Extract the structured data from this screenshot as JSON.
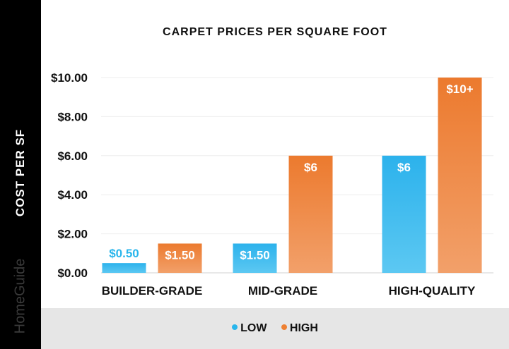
{
  "brand": "HomeGuide",
  "chart_data": {
    "type": "bar",
    "title": "CARPET PRICES PER SQUARE FOOT",
    "xlabel": "",
    "ylabel": "COST PER SF",
    "categories": [
      "BUILDER-GRADE",
      "MID-GRADE",
      "HIGH-QUALITY"
    ],
    "series": [
      {
        "name": "LOW",
        "color": "#29b6ec",
        "values": [
          0.5,
          1.5,
          6
        ],
        "labels": [
          "$0.50",
          "$1.50",
          "$6"
        ]
      },
      {
        "name": "HIGH",
        "color": "#ee8032",
        "values": [
          1.5,
          6,
          10
        ],
        "labels": [
          "$1.50",
          "$6",
          "$10+"
        ]
      }
    ],
    "ylim": [
      0,
      10
    ],
    "yticks": [
      "$0.00",
      "$2.00",
      "$4.00",
      "$6.00",
      "$8.00",
      "$10.00"
    ],
    "grid": true,
    "legend_position": "bottom"
  }
}
